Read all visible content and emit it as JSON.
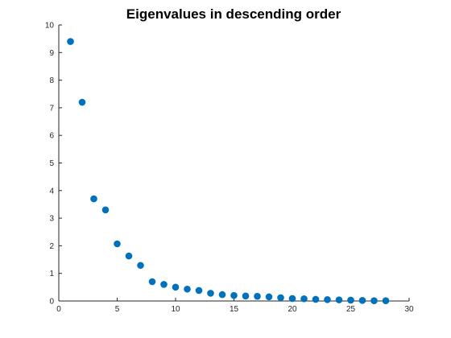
{
  "chart_data": {
    "type": "scatter",
    "title": "Eigenvalues in descending order",
    "xlabel": "",
    "ylabel": "",
    "xlim": [
      0,
      30
    ],
    "ylim": [
      0,
      10
    ],
    "xticks": [
      0,
      5,
      10,
      15,
      20,
      25,
      30
    ],
    "yticks": [
      0,
      1,
      2,
      3,
      4,
      5,
      6,
      7,
      8,
      9,
      10
    ],
    "grid": false,
    "color": "#0072bd",
    "x": [
      1,
      2,
      3,
      4,
      5,
      6,
      7,
      8,
      9,
      10,
      11,
      12,
      13,
      14,
      15,
      16,
      17,
      18,
      19,
      20,
      21,
      22,
      23,
      24,
      25,
      26,
      27,
      28
    ],
    "y": [
      9.4,
      7.2,
      3.7,
      3.3,
      2.07,
      1.63,
      1.29,
      0.7,
      0.6,
      0.5,
      0.43,
      0.38,
      0.28,
      0.23,
      0.2,
      0.18,
      0.17,
      0.15,
      0.12,
      0.09,
      0.08,
      0.06,
      0.05,
      0.04,
      0.03,
      0.02,
      0.01,
      0.01
    ]
  }
}
